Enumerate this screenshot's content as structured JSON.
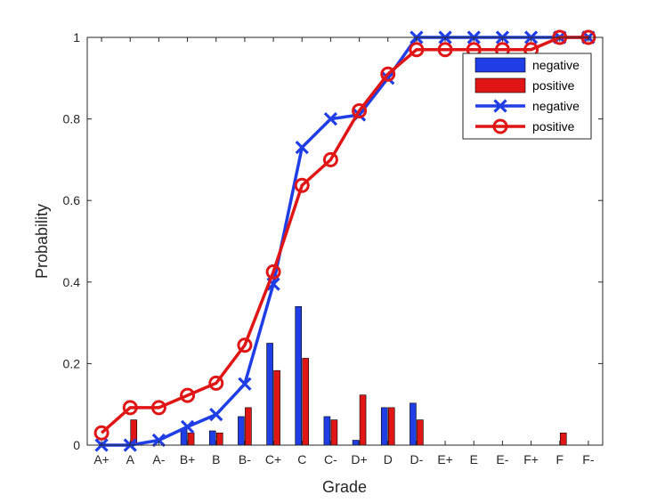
{
  "chart_data": {
    "type": "bar",
    "xlabel": "Grade",
    "ylabel": "Probability",
    "ylim": [
      0,
      1
    ],
    "yticks": [
      0,
      0.2,
      0.4,
      0.6,
      0.8,
      1
    ],
    "ytick_labels": [
      "0",
      "0.2",
      "0.4",
      "0.6",
      "0.8",
      "1"
    ],
    "categories": [
      "A+",
      "A",
      "A-",
      "B+",
      "B",
      "B-",
      "C+",
      "C",
      "C-",
      "D+",
      "D",
      "D-",
      "E+",
      "E",
      "E-",
      "F+",
      "F",
      "F-"
    ],
    "bar_series": [
      {
        "name": "negative",
        "color": "#1f3ee6",
        "values": [
          0,
          0,
          0,
          0.04,
          0.035,
          0.07,
          0.25,
          0.34,
          0.07,
          0.012,
          0.092,
          0.103,
          0,
          0,
          0,
          0,
          0,
          0
        ]
      },
      {
        "name": "positive",
        "color": "#e01616",
        "values": [
          0,
          0.062,
          0,
          0.03,
          0.03,
          0.092,
          0.183,
          0.213,
          0.062,
          0.123,
          0.092,
          0.062,
          0,
          0,
          0,
          0,
          0.03,
          0
        ]
      }
    ],
    "line_series": [
      {
        "name": "negative",
        "color": "#1f3ee6",
        "marker": "x",
        "values": [
          0,
          0,
          0.012,
          0.045,
          0.075,
          0.15,
          0.395,
          0.73,
          0.8,
          0.81,
          0.9,
          1,
          1,
          1,
          1,
          1,
          1,
          1
        ]
      },
      {
        "name": "positive",
        "color": "#e01616",
        "marker": "o",
        "values": [
          0.03,
          0.092,
          0.092,
          0.122,
          0.152,
          0.245,
          0.425,
          0.637,
          0.7,
          0.82,
          0.91,
          0.97,
          0.97,
          0.97,
          0.97,
          0.97,
          1,
          1
        ]
      }
    ],
    "grid": false,
    "legend_position": "top-right"
  }
}
